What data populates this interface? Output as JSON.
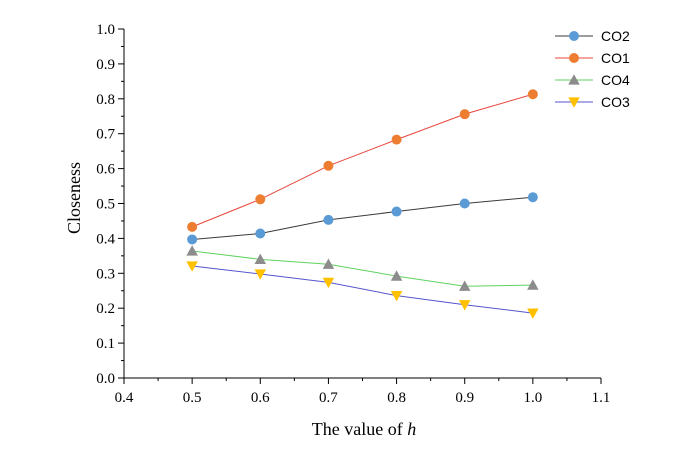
{
  "chart_data": {
    "type": "line",
    "title": "",
    "xlabel_prefix": "The value of ",
    "xlabel_var": "h",
    "ylabel": "Closeness",
    "xlim": [
      0.4,
      1.1
    ],
    "ylim": [
      0.0,
      1.0
    ],
    "x_ticks": [
      "0.4",
      "0.5",
      "0.6",
      "0.7",
      "0.8",
      "0.9",
      "1.0",
      "1.1"
    ],
    "y_ticks": [
      "0.0",
      "0.1",
      "0.2",
      "0.3",
      "0.4",
      "0.5",
      "0.6",
      "0.7",
      "0.8",
      "0.9",
      "1.0"
    ],
    "x": [
      0.5,
      0.6,
      0.7,
      0.8,
      0.9,
      1.0
    ],
    "grid": false,
    "legend_position": "top-right",
    "series": [
      {
        "name": "CO2",
        "values": [
          0.397,
          0.414,
          0.453,
          0.477,
          0.5,
          0.518
        ],
        "line_color": "#3a3a3a",
        "marker_color": "#5b9bd5",
        "marker": "circle"
      },
      {
        "name": "CO1",
        "values": [
          0.433,
          0.512,
          0.608,
          0.683,
          0.756,
          0.813
        ],
        "line_color": "#e8443a",
        "marker_color": "#ed7d31",
        "marker": "circle"
      },
      {
        "name": "CO4",
        "values": [
          0.364,
          0.34,
          0.326,
          0.292,
          0.263,
          0.266
        ],
        "line_color": "#5fd35f",
        "marker_color": "#8c8c8c",
        "marker": "triangle-up"
      },
      {
        "name": "CO3",
        "values": [
          0.321,
          0.298,
          0.274,
          0.236,
          0.21,
          0.186
        ],
        "line_color": "#5555cc",
        "marker_color": "#ffc000",
        "marker": "triangle-down"
      }
    ]
  }
}
